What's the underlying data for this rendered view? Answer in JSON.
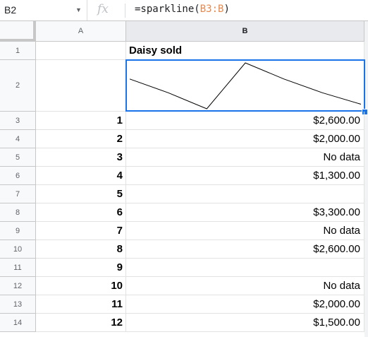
{
  "formula_bar": {
    "cell_ref": "B2",
    "fx_label": "fx",
    "formula_prefix": "=sparkline(",
    "formula_ref": "B3:B",
    "formula_suffix": ")"
  },
  "columns": [
    "A",
    "B"
  ],
  "rows": [
    {
      "num": "1",
      "a": "",
      "b": "Daisy sold"
    },
    {
      "num": "2",
      "a": "",
      "b": ""
    },
    {
      "num": "3",
      "a": "1",
      "b": "$2,600.00"
    },
    {
      "num": "4",
      "a": "2",
      "b": "$2,000.00"
    },
    {
      "num": "5",
      "a": "3",
      "b": "No data"
    },
    {
      "num": "6",
      "a": "4",
      "b": "$1,300.00"
    },
    {
      "num": "7",
      "a": "5",
      "b": ""
    },
    {
      "num": "8",
      "a": "6",
      "b": "$3,300.00"
    },
    {
      "num": "9",
      "a": "7",
      "b": "No data"
    },
    {
      "num": "10",
      "a": "8",
      "b": "$2,600.00"
    },
    {
      "num": "11",
      "a": "9",
      "b": ""
    },
    {
      "num": "12",
      "a": "10",
      "b": "No data"
    },
    {
      "num": "13",
      "a": "11",
      "b": "$2,000.00"
    },
    {
      "num": "14",
      "a": "12",
      "b": "$1,500.00"
    }
  ],
  "sparkline": {
    "values": [
      2600,
      2000,
      1300,
      3300,
      2600,
      2000,
      1500
    ],
    "color": "#000000"
  },
  "colors": {
    "selection": "#1a73e8",
    "formula_ref": "#e8884c"
  }
}
